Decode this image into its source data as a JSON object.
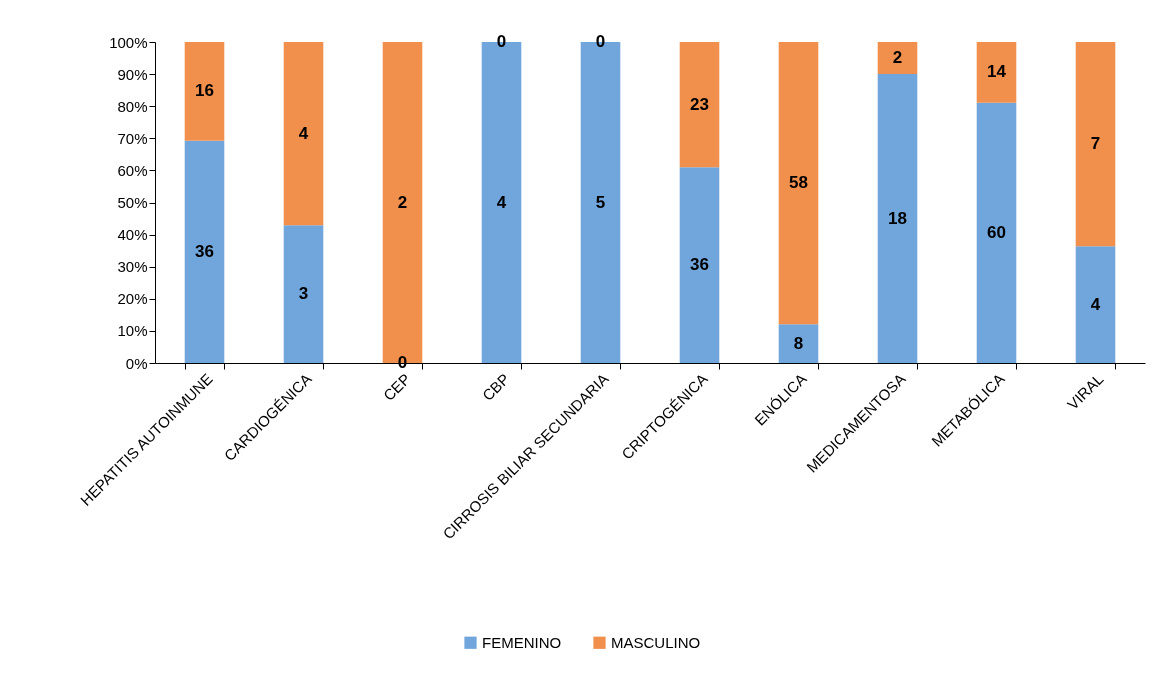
{
  "chart_data": {
    "type": "bar",
    "stacked": true,
    "categories": [
      "HEPATITIS AUTOINMUNE",
      "CARDIOGÉNICA",
      "CEP",
      "CBP",
      "CIRROSIS BILIAR SECUNDARIA",
      "CRIPTOGÉNICA",
      "ENÓLICA",
      "MEDICAMENTOSA",
      "METABÓLICA",
      "VIRAL"
    ],
    "series": [
      {
        "name": "FEMENINO",
        "color": "#70a6dc",
        "values": [
          69.2,
          42.9,
          0,
          100,
          100,
          61.0,
          12.1,
          90,
          81.1,
          36.4
        ]
      },
      {
        "name": "MASCULINO",
        "color": "#f0904c",
        "values": [
          30.8,
          57.1,
          100,
          0,
          0,
          39.0,
          87.9,
          10,
          18.9,
          63.6
        ]
      }
    ],
    "annotations": [
      {
        "text": "36",
        "x": "HEPATITIS AUTOINMUNE",
        "y": 34.6
      },
      {
        "text": "16",
        "x": "HEPATITIS AUTOINMUNE",
        "y": 84.6
      },
      {
        "text": "3",
        "x": "CARDIOGÉNICA",
        "y": 21.4
      },
      {
        "text": "4",
        "x": "CARDIOGÉNICA",
        "y": 71.4
      },
      {
        "text": "0",
        "x": "CEP",
        "y": 0
      },
      {
        "text": "2",
        "x": "CEP",
        "y": 50
      },
      {
        "text": "4",
        "x": "CBP",
        "y": 50
      },
      {
        "text": "0",
        "x": "CBP",
        "y": 100
      },
      {
        "text": "5",
        "x": "CIRROSIS BILIAR SECUNDARIA",
        "y": 50
      },
      {
        "text": "0",
        "x": "CIRROSIS BILIAR SECUNDARIA",
        "y": 100
      },
      {
        "text": "36",
        "x": "CRIPTOGÉNICA",
        "y": 30.5
      },
      {
        "text": "23",
        "x": "CRIPTOGÉNICA",
        "y": 80.5
      },
      {
        "text": "8",
        "x": "ENÓLICA",
        "y": 6
      },
      {
        "text": "58",
        "x": "ENÓLICA",
        "y": 56
      },
      {
        "text": "18",
        "x": "MEDICAMENTOSA",
        "y": 45
      },
      {
        "text": "2",
        "x": "MEDICAMENTOSA",
        "y": 95
      },
      {
        "text": "60",
        "x": "METABÓLICA",
        "y": 40.5
      },
      {
        "text": "14",
        "x": "METABÓLICA",
        "y": 90.5
      },
      {
        "text": "4",
        "x": "VIRAL",
        "y": 18.2
      },
      {
        "text": "7",
        "x": "VIRAL",
        "y": 68.2
      }
    ],
    "ylim": [
      0,
      100
    ],
    "yticks": [
      {
        "value": 0,
        "label": "0%"
      },
      {
        "value": 10,
        "label": "10%"
      },
      {
        "value": 20,
        "label": "20%"
      },
      {
        "value": 30,
        "label": "30%"
      },
      {
        "value": 40,
        "label": "40%"
      },
      {
        "value": 50,
        "label": "50%"
      },
      {
        "value": 60,
        "label": "60%"
      },
      {
        "value": 70,
        "label": "70%"
      },
      {
        "value": 80,
        "label": "80%"
      },
      {
        "value": 90,
        "label": "90%"
      },
      {
        "value": 100,
        "label": "100%"
      }
    ],
    "grid": false,
    "legend": "bottom"
  }
}
